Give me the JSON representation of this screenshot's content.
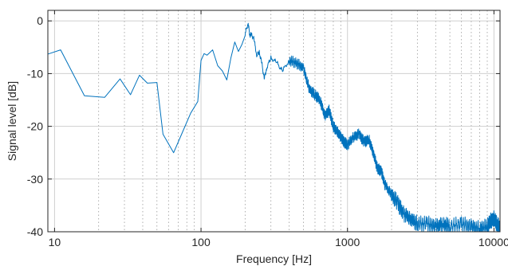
{
  "chart_data": {
    "type": "line",
    "title": "",
    "xlabel": "Frequency [Hz]",
    "ylabel": "Signal level [dB]",
    "xscale": "log",
    "xlim": [
      9,
      11000
    ],
    "ylim": [
      -40,
      2
    ],
    "x_ticks": [
      10,
      100,
      1000,
      10000
    ],
    "x_tick_labels": [
      "10",
      "100",
      "1000",
      "10000"
    ],
    "y_ticks": [
      0,
      -10,
      -20,
      -30,
      -40
    ],
    "y_tick_labels": [
      "0",
      "-10",
      "-20",
      "-30",
      "-40"
    ],
    "grid": "major solid, minor dotted",
    "legend": "none",
    "series": [
      {
        "color": "#0072BD",
        "x": [
          9,
          11,
          16,
          22,
          28,
          33,
          38,
          43,
          50,
          55,
          65,
          75,
          85,
          95,
          100,
          105,
          110,
          120,
          130,
          140,
          150,
          160,
          170,
          180,
          190,
          200,
          210,
          215,
          220,
          230,
          240,
          250,
          260,
          270,
          280,
          300,
          330,
          360,
          400,
          450,
          500,
          550,
          600,
          650,
          700,
          750,
          800,
          850,
          900,
          950,
          1000,
          1100,
          1200,
          1300,
          1400,
          1500,
          1600,
          1700,
          1800,
          2000,
          2200,
          2400,
          2700,
          3000,
          3500,
          4000,
          4500,
          5000,
          6000,
          7000,
          8000,
          9000,
          9500,
          10000,
          10500,
          11000
        ],
        "y": [
          -6.3,
          -5.5,
          -14.2,
          -14.5,
          -11,
          -14,
          -10.3,
          -11.8,
          -11.7,
          -21.5,
          -25,
          -21,
          -17.5,
          -15.3,
          -7.5,
          -6.2,
          -6.5,
          -5.5,
          -8.5,
          -9.5,
          -11.2,
          -7,
          -4,
          -5.8,
          -4.5,
          -2.5,
          -0.3,
          -2.8,
          -2.5,
          -3.5,
          -6.5,
          -6,
          -8,
          -11,
          -9,
          -7,
          -8,
          -9.5,
          -7.5,
          -8,
          -9,
          -13,
          -14,
          -15,
          -18,
          -17,
          -20,
          -21,
          -22,
          -23,
          -23.5,
          -22,
          -21.5,
          -23,
          -22.5,
          -25,
          -28,
          -28.5,
          -31,
          -33,
          -34.5,
          -36.5,
          -37.5,
          -38.5,
          -38.5,
          -39,
          -38.5,
          -39,
          -38.5,
          -39,
          -39.5,
          -39,
          -38,
          -37.5,
          -38.5,
          -39.5
        ]
      }
    ]
  }
}
